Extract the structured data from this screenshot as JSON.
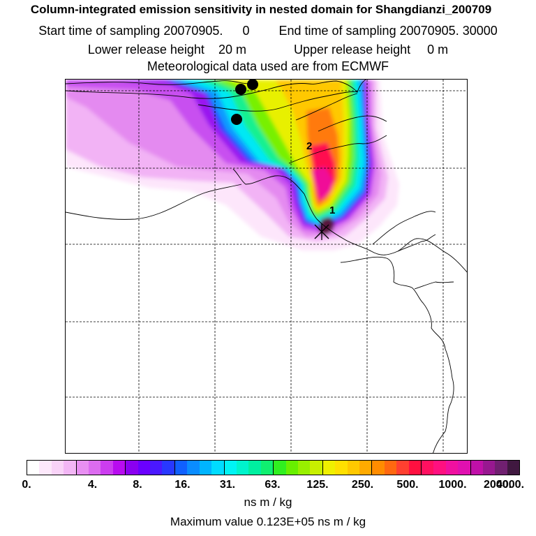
{
  "title": "Column-integrated emission sensitivity in nested domain for Shangdianzi_200709",
  "sampling": {
    "start_label": "Start time of sampling",
    "start_value": "20070905.",
    "start_time": "0",
    "end_label": "End time of sampling",
    "end_value": "20070905. 30000"
  },
  "release": {
    "lower_label": "Lower release height",
    "lower_value": "20 m",
    "upper_label": "Upper release height",
    "upper_value": "0 m"
  },
  "met_data": "Meteorological data used are from ECMWF",
  "map": {
    "markers": [
      "1",
      "2"
    ],
    "colors": {
      "c1": "#fde6fb",
      "c2": "#f2b3f5",
      "c3": "#e48af0",
      "c4": "#c84ff0",
      "c5": "#9a14f0",
      "c6": "#2848ff",
      "c7": "#0a9cff",
      "c8": "#00e8f4",
      "c9": "#14f090",
      "c10": "#78f000",
      "c11": "#e8f000",
      "c12": "#ffc800",
      "c13": "#ff7a10",
      "c14": "#ff1050",
      "c15": "#f01098",
      "c16": "#58183c"
    }
  },
  "colorbar": {
    "colors": [
      "#ffffff",
      "#fde8fb",
      "#f9d3f8",
      "#f2b6f5",
      "#e88ff2",
      "#dc6cf0",
      "#cc3df0",
      "#b80cf0",
      "#8a00f0",
      "#6a00ff",
      "#4a18ff",
      "#2838ff",
      "#1060ff",
      "#0a8cff",
      "#00b4ff",
      "#00dcff",
      "#00f4f4",
      "#00f4cc",
      "#00f0a0",
      "#10f070",
      "#30f020",
      "#68f000",
      "#98f000",
      "#c8f000",
      "#f0f000",
      "#ffe000",
      "#ffc800",
      "#ffaa00",
      "#ff8c00",
      "#ff6810",
      "#ff4030",
      "#ff1040",
      "#ff1060",
      "#ff1080",
      "#f010a0",
      "#e010b0",
      "#c010a8",
      "#981890",
      "#702070",
      "#401840"
    ],
    "ticks": [
      "0.",
      "4.",
      "8.",
      "16.",
      "31.",
      "63.",
      "125.",
      "250.",
      "500.",
      "1000.",
      "2000.",
      "4000."
    ],
    "unit": "ns m / kg"
  },
  "max_label": "Maximum value",
  "max_value": "0.123E+05 ns m / kg"
}
